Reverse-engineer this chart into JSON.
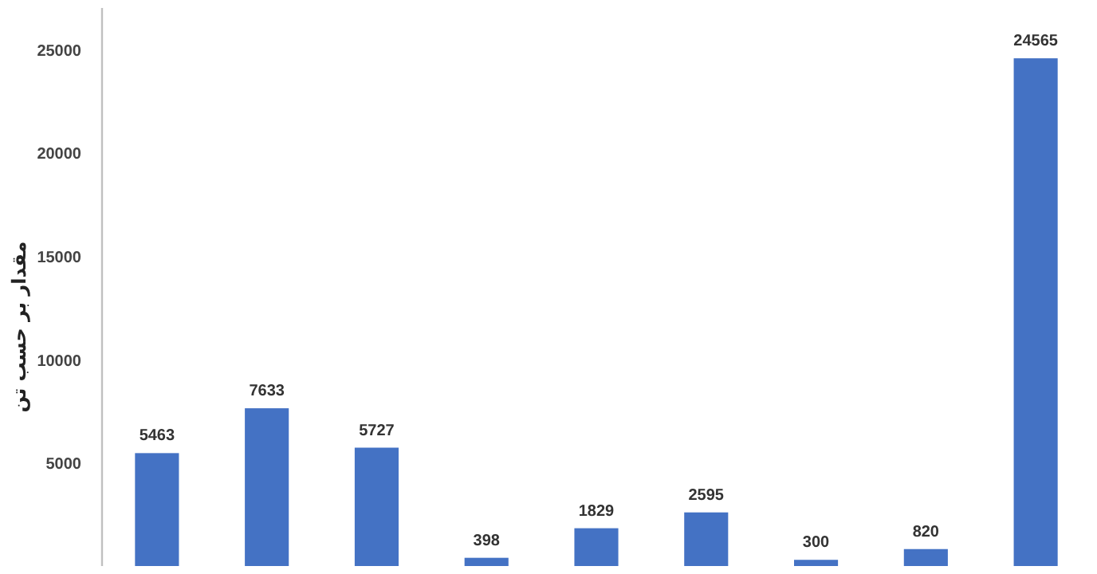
{
  "chart_data": {
    "type": "bar",
    "ylabel": "مقدار بر حسب تن",
    "categories": [
      null,
      null,
      null,
      null,
      null,
      null,
      null,
      null,
      null
    ],
    "values": [
      5463,
      7633,
      5727,
      398,
      1829,
      2595,
      300,
      820,
      24565
    ],
    "color": "#4472c4",
    "ylim": [
      0,
      27000
    ],
    "yticks": [
      5000,
      10000,
      15000,
      20000,
      25000
    ],
    "data_labels": true,
    "grid": false
  }
}
